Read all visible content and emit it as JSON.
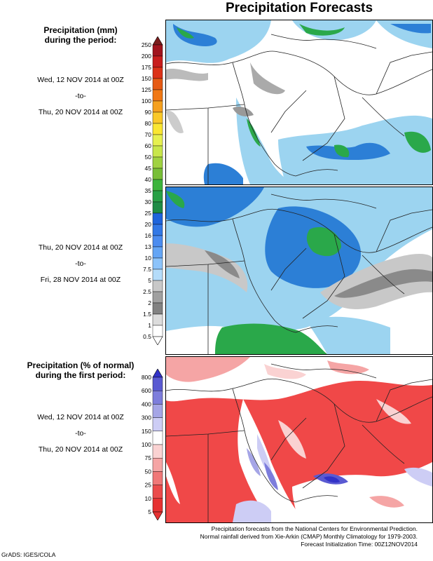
{
  "title": "Precipitation Forecasts",
  "left": {
    "mm_heading": [
      "Precipitation (mm)",
      "during the period:"
    ],
    "period1": [
      "Wed, 12 NOV 2014 at 00Z",
      "-to-",
      "Thu, 20 NOV 2014 at 00Z"
    ],
    "period2": [
      "Thu, 20 NOV 2014 at 00Z",
      "-to-",
      "Fri, 28 NOV 2014 at 00Z"
    ],
    "pct_heading": [
      "Precipitation (% of normal)",
      "during the first period:"
    ],
    "period3": [
      "Wed, 12 NOV 2014 at 00Z",
      "-to-",
      "Thu, 20 NOV 2014 at 00Z"
    ]
  },
  "footer": [
    "Precipitation forecasts from the National Centers for Environmental Prediction.",
    "Normal rainfall derived from Xie-Arkin (CMAP) Monthly Climatology for 1979-2003.",
    "Forecast Initialization Time: 00Z12NOV2014"
  ],
  "credit": "GrADS: IGES/COLA",
  "chart_data": [
    {
      "type": "heatmap",
      "name": "mm colorbar",
      "levels": [
        "250",
        "200",
        "175",
        "150",
        "125",
        "100",
        "90",
        "80",
        "70",
        "60",
        "50",
        "45",
        "40",
        "35",
        "30",
        "25",
        "20",
        "16",
        "13",
        "10",
        "7.5",
        "5",
        "2.5",
        "2",
        "1.5",
        "1",
        "0.5"
      ],
      "colors": [
        "#7a1c1c",
        "#a0141e",
        "#c81e1e",
        "#dc3218",
        "#e65a14",
        "#f07814",
        "#f5a01e",
        "#fac828",
        "#fae632",
        "#e6f050",
        "#c8e64b",
        "#a0d241",
        "#78be37",
        "#3cb43c",
        "#28a046",
        "#1e8c46",
        "#1e64dc",
        "#3278e6",
        "#4b8cf0",
        "#64a5f5",
        "#8cc3fa",
        "#b4dcfa",
        "#c8c8c8",
        "#a0a0a0",
        "#828282",
        "#dcdcdc",
        "#ffffff"
      ]
    },
    {
      "type": "heatmap",
      "name": "percent of normal colorbar",
      "levels": [
        "800",
        "600",
        "400",
        "300",
        "150",
        "100",
        "75",
        "50",
        "25",
        "10",
        "5"
      ],
      "colors": [
        "#3232c8",
        "#5a5ad2",
        "#7d7ddc",
        "#a5a5e6",
        "#cdcdf5",
        "#ffffff",
        "#fad2d2",
        "#f5a5a5",
        "#f07878",
        "#eb4b4b",
        "#e63232"
      ]
    }
  ]
}
